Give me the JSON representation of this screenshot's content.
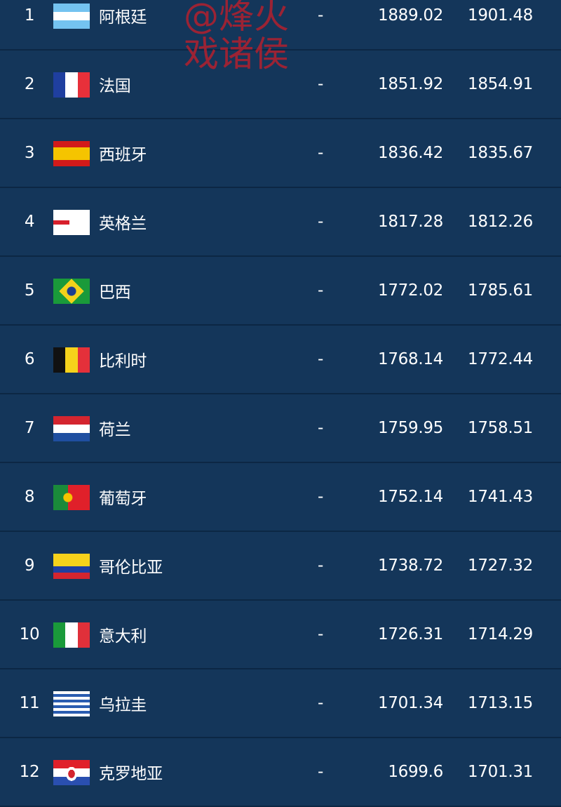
{
  "watermark": "@烽火戏诸侯",
  "rows": [
    {
      "rank": "1",
      "name": "阿根廷",
      "flag": "argentina",
      "change": "-",
      "prev": "1889.02",
      "points": "1901.48"
    },
    {
      "rank": "2",
      "name": "法国",
      "flag": "france",
      "change": "-",
      "prev": "1851.92",
      "points": "1854.91"
    },
    {
      "rank": "3",
      "name": "西班牙",
      "flag": "spain",
      "change": "-",
      "prev": "1836.42",
      "points": "1835.67"
    },
    {
      "rank": "4",
      "name": "英格兰",
      "flag": "england",
      "change": "-",
      "prev": "1817.28",
      "points": "1812.26"
    },
    {
      "rank": "5",
      "name": "巴西",
      "flag": "brazil",
      "change": "-",
      "prev": "1772.02",
      "points": "1785.61"
    },
    {
      "rank": "6",
      "name": "比利时",
      "flag": "belgium",
      "change": "-",
      "prev": "1768.14",
      "points": "1772.44"
    },
    {
      "rank": "7",
      "name": "荷兰",
      "flag": "netherlands",
      "change": "-",
      "prev": "1759.95",
      "points": "1758.51"
    },
    {
      "rank": "8",
      "name": "葡萄牙",
      "flag": "portugal",
      "change": "-",
      "prev": "1752.14",
      "points": "1741.43"
    },
    {
      "rank": "9",
      "name": "哥伦比亚",
      "flag": "colombia",
      "change": "-",
      "prev": "1738.72",
      "points": "1727.32"
    },
    {
      "rank": "10",
      "name": "意大利",
      "flag": "italy",
      "change": "-",
      "prev": "1726.31",
      "points": "1714.29"
    },
    {
      "rank": "11",
      "name": "乌拉圭",
      "flag": "uruguay",
      "change": "-",
      "prev": "1701.34",
      "points": "1713.15"
    },
    {
      "rank": "12",
      "name": "克罗地亚",
      "flag": "croatia",
      "change": "-",
      "prev": "1699.6",
      "points": "1701.31"
    }
  ]
}
